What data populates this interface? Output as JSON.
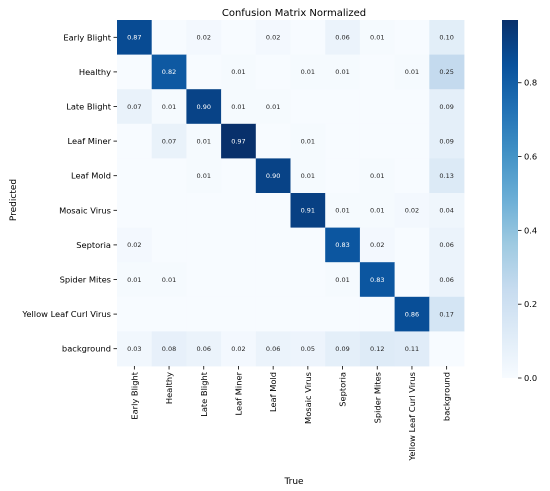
{
  "chart_data": {
    "type": "heatmap",
    "title": "Confusion Matrix Normalized",
    "xlabel": "True",
    "ylabel": "Predicted",
    "x_categories": [
      "Early Blight",
      "Healthy",
      "Late Blight",
      "Leaf Miner",
      "Leaf Mold",
      "Mosaic Virus",
      "Septoria",
      "Spider Mites",
      "Yellow Leaf Curl Virus",
      "background"
    ],
    "y_categories": [
      "Early Blight",
      "Healthy",
      "Late Blight",
      "Leaf Miner",
      "Leaf Mold",
      "Mosaic Virus",
      "Septoria",
      "Spider Mites",
      "Yellow Leaf Curl Virus",
      "background"
    ],
    "values": [
      [
        0.87,
        null,
        0.02,
        null,
        0.02,
        null,
        0.06,
        0.01,
        null,
        0.1
      ],
      [
        null,
        0.82,
        null,
        0.01,
        null,
        0.01,
        0.01,
        null,
        0.01,
        0.25
      ],
      [
        0.07,
        0.01,
        0.9,
        0.01,
        0.01,
        null,
        null,
        null,
        null,
        0.09
      ],
      [
        null,
        0.07,
        0.01,
        0.97,
        null,
        0.01,
        null,
        null,
        null,
        0.09
      ],
      [
        null,
        null,
        0.01,
        null,
        0.9,
        0.01,
        null,
        0.01,
        null,
        0.13
      ],
      [
        null,
        null,
        null,
        null,
        null,
        0.91,
        0.01,
        0.01,
        0.02,
        0.04
      ],
      [
        0.02,
        null,
        null,
        null,
        null,
        null,
        0.83,
        0.02,
        null,
        0.06
      ],
      [
        0.01,
        0.01,
        null,
        null,
        null,
        null,
        0.01,
        0.83,
        null,
        0.06
      ],
      [
        null,
        null,
        null,
        null,
        null,
        null,
        null,
        null,
        0.86,
        0.17
      ],
      [
        0.03,
        0.08,
        0.06,
        0.02,
        0.06,
        0.05,
        0.09,
        0.12,
        0.11,
        null
      ]
    ],
    "colorbar": {
      "range": [
        0.0,
        0.97
      ],
      "ticks": [
        "0.0",
        "0.2",
        "0.4",
        "0.6",
        "0.8"
      ],
      "colormap": "Blues"
    }
  }
}
